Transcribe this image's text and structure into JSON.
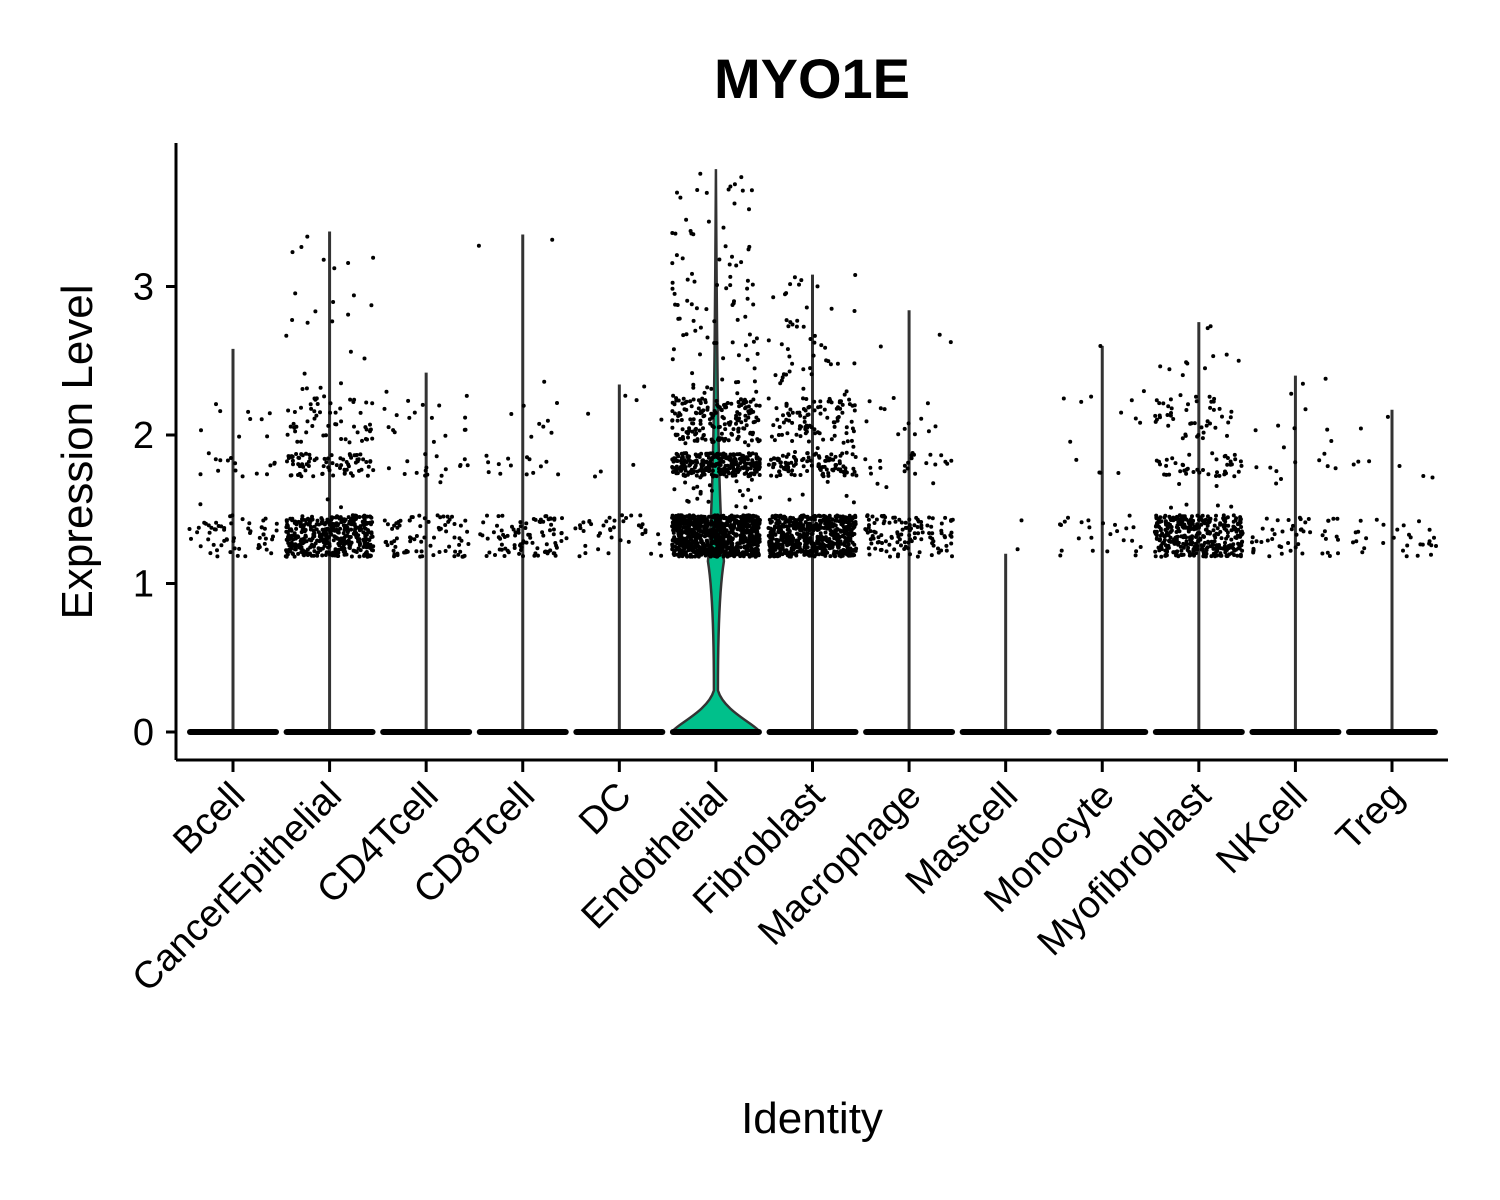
{
  "chart_data": {
    "type": "violin",
    "title": "MYO1E",
    "xlabel": "Identity",
    "ylabel": "Expression Level",
    "ylim": [
      -0.18,
      3.95
    ],
    "yticks": [
      0,
      1,
      2,
      3
    ],
    "grid": false,
    "legend": "none",
    "categories": [
      "Bcell",
      "CancerEpithelial",
      "CD4Tcell",
      "CD8Tcell",
      "DC",
      "Endothelial",
      "Fibroblast",
      "Macrophage",
      "Mastcell",
      "Monocyte",
      "Myofibroblast",
      "NKcell",
      "Treg"
    ],
    "max_values": [
      2.58,
      3.37,
      2.42,
      3.35,
      2.34,
      3.79,
      3.08,
      2.84,
      1.2,
      2.6,
      2.76,
      2.4,
      2.17
    ],
    "fill_colors": [
      "#F8766D",
      "#DE8C00",
      "#B79F00",
      "#7CAE00",
      "#00BA38",
      "#00C08B",
      "#00BFC4",
      "#00B4F0",
      "#619CFF",
      "#C77CFF",
      "#F564E3",
      "#FF64B0",
      "#E76BF3"
    ],
    "highlight_color": "#00C08B",
    "point_density": [
      60,
      420,
      80,
      90,
      40,
      900,
      650,
      120,
      2,
      25,
      380,
      50,
      30
    ],
    "upper_density": [
      25,
      160,
      35,
      25,
      8,
      600,
      260,
      40,
      0,
      14,
      110,
      20,
      8
    ]
  }
}
